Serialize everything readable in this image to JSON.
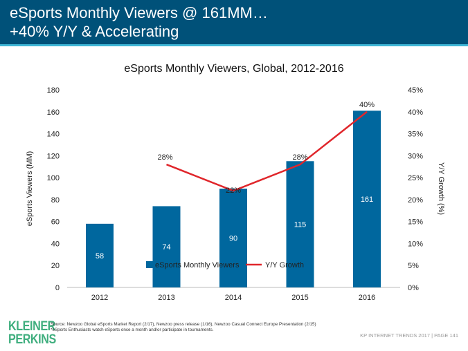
{
  "header": {
    "line1": "eSports Monthly Viewers @ 161MM…",
    "line2": "+40% Y/Y & Accelerating"
  },
  "chart_data": {
    "type": "bar+line",
    "title": "eSports Monthly Viewers, Global, 2012-2016",
    "categories": [
      "2012",
      "2013",
      "2014",
      "2015",
      "2016"
    ],
    "ylabel": "eSports Viewers (MM)",
    "ylim": [
      0,
      180
    ],
    "yticks": [
      0,
      20,
      40,
      60,
      80,
      100,
      120,
      140,
      160,
      180
    ],
    "y2label": "Y/Y Growth (%)",
    "y2lim": [
      0,
      45
    ],
    "y2ticks": [
      "0%",
      "5%",
      "10%",
      "15%",
      "20%",
      "25%",
      "30%",
      "35%",
      "40%",
      "45%"
    ],
    "series": [
      {
        "name": "eSports Monthly Viewers",
        "type": "bar",
        "values": [
          58,
          74,
          90,
          115,
          161
        ],
        "color": "#00679e"
      },
      {
        "name": "Y/Y Growth",
        "type": "line",
        "axis": "right",
        "values": [
          null,
          28,
          22,
          28,
          40
        ],
        "labels": [
          "",
          "28%",
          "22%",
          "28%",
          "40%"
        ],
        "color": "#e0262b"
      }
    ],
    "legend": "bottom",
    "grid": false
  },
  "footer": {
    "logo": "KLEINER PERKINS",
    "source": "Source:  Newzoo Global eSports Market Report (2/17), Newzoo press release (1/16), Newzoo Casual Connect Europe Presentation (2/15)",
    "note": "*eSports Enthusiasts watch eSports once a month and/or participate in tournaments.",
    "page": "KP INTERNET TRENDS 2017  |  PAGE 141"
  }
}
